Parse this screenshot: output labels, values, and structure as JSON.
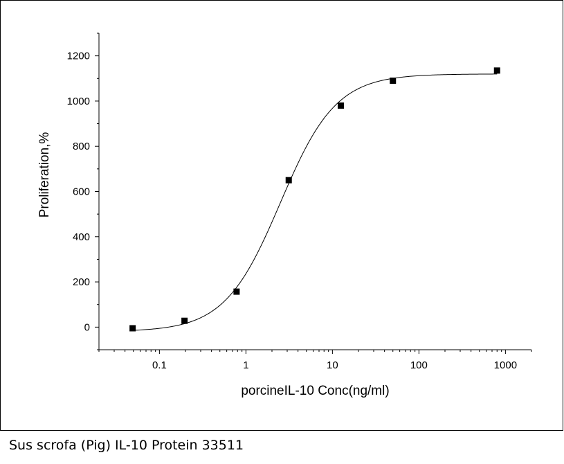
{
  "caption": "Sus scrofa (Pig) IL-10 Protein 33511",
  "chart_data": {
    "type": "scatter",
    "xlabel": "porcineIL-10 Conc(ng/ml)",
    "ylabel": "Proliferation,%",
    "x_scale": "log",
    "xlim": [
      0.02,
      2000
    ],
    "ylim": [
      -100,
      1300
    ],
    "x_ticks": [
      0.1,
      1,
      10,
      100,
      1000
    ],
    "x_tick_labels": [
      "0.1",
      "1",
      "10",
      "100",
      "1000"
    ],
    "y_ticks": [
      0,
      200,
      400,
      600,
      800,
      1000,
      1200
    ],
    "y_tick_labels": [
      "0",
      "200",
      "400",
      "600",
      "800",
      "1000",
      "1200"
    ],
    "grid": false,
    "legend": "none",
    "points": [
      {
        "x": 0.049,
        "y": -5
      },
      {
        "x": 0.195,
        "y": 28
      },
      {
        "x": 0.78,
        "y": 157
      },
      {
        "x": 3.125,
        "y": 650
      },
      {
        "x": 12.5,
        "y": 980
      },
      {
        "x": 50,
        "y": 1090
      },
      {
        "x": 800,
        "y": 1135
      }
    ],
    "fit_curve": {
      "model": "4PL",
      "bottom": -20,
      "top": 1120,
      "ec50": 2.5,
      "hill": 1.35
    },
    "marker_color": "#000000",
    "line_color": "#000000"
  }
}
